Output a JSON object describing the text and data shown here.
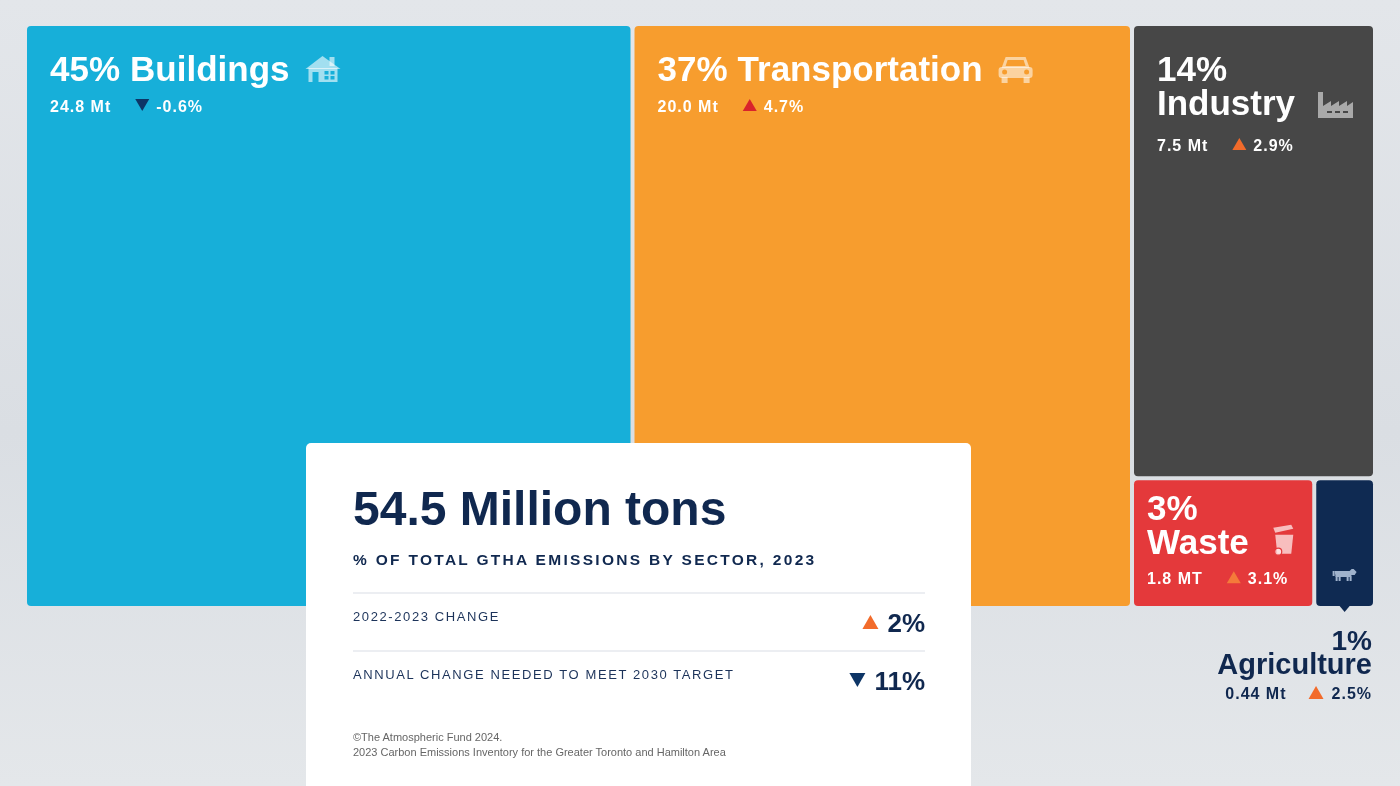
{
  "chart_data": {
    "type": "other",
    "title": "54.5 Million tons",
    "subtitle": "% OF TOTAL GTHA EMISSIONS BY SECTOR, 2023",
    "categories": [
      "Buildings",
      "Transportation",
      "Industry",
      "Waste",
      "Agriculture"
    ],
    "series": [
      {
        "values": [
          45,
          37,
          14,
          3,
          1
        ],
        "value_labels": [
          "45%",
          "37%",
          "14%",
          "3%",
          "1%"
        ],
        "colors": [
          "#17afd9",
          "#f79d2e",
          "#474747",
          "#e4393b",
          "#0f2a52"
        ]
      },
      {
        "values": [
          24.8,
          20.0,
          7.5,
          1.8,
          0.44
        ],
        "value_labels": [
          "24.8 Mt",
          "20.0 Mt",
          "7.5 Mt",
          "1.8 MT",
          "0.44 Mt"
        ]
      },
      {
        "values": [
          -0.6,
          4.7,
          2.9,
          3.1,
          2.5
        ],
        "value_labels": [
          "-0.6%",
          "4.7%",
          "2.9%",
          "3.1%",
          "2.5%"
        ],
        "colors": [
          "#0d3566",
          "#d9232b",
          "#f26b2b",
          "#f47a3a",
          "#f26b2b"
        ]
      }
    ],
    "annotations": [
      "2022-2023 CHANGE",
      "2%",
      "ANNUAL CHANGE NEEDED TO MEET 2030 TARGET",
      "11%",
      "©The Atmospheric Fund 2024.",
      "2023 Carbon Emissions Inventory for the Greater Toronto and Hamilton Area"
    ]
  }
}
